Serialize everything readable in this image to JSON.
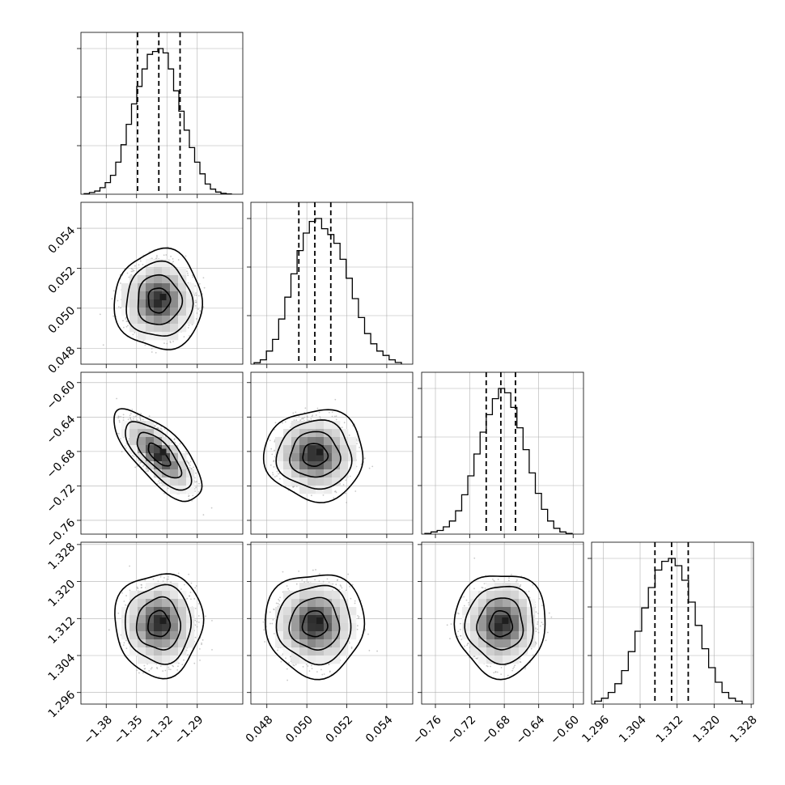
{
  "chart_data": {
    "type": "corner",
    "grid": true,
    "parameters": [
      {
        "index": 0,
        "range": [
          -1.405,
          -1.245
        ],
        "mean": -1.328,
        "sigma": 0.014,
        "quantiles": [
          -1.349,
          -1.328,
          -1.307
        ],
        "ticks": [
          -1.38,
          -1.35,
          -1.32,
          -1.29
        ],
        "tick_labels": [
          "−1.38",
          "−1.35",
          "−1.32",
          "−1.29"
        ],
        "hist": [
          0.004,
          0.012,
          0.022,
          0.045,
          0.08,
          0.13,
          0.22,
          0.34,
          0.48,
          0.62,
          0.74,
          0.86,
          0.96,
          0.98,
          1.0,
          0.97,
          0.86,
          0.71,
          0.57,
          0.44,
          0.32,
          0.22,
          0.14,
          0.07,
          0.035,
          0.015,
          0.006,
          0.002
        ]
      },
      {
        "index": 1,
        "range": [
          0.0472,
          0.0553
        ],
        "mean": 0.0504,
        "sigma": 0.0008,
        "quantiles": [
          0.0496,
          0.0504,
          0.0512
        ],
        "ticks": [
          0.048,
          0.05,
          0.052,
          0.054
        ],
        "tick_labels": [
          "0.048",
          "0.050",
          "0.052",
          "0.054"
        ],
        "hist": [
          0.01,
          0.03,
          0.09,
          0.17,
          0.31,
          0.46,
          0.62,
          0.78,
          0.9,
          0.98,
          1.0,
          0.93,
          0.89,
          0.83,
          0.72,
          0.59,
          0.45,
          0.32,
          0.21,
          0.14,
          0.09,
          0.06,
          0.03,
          0.012
        ]
      },
      {
        "index": 2,
        "range": [
          -0.776,
          -0.588
        ],
        "mean": -0.684,
        "sigma": 0.017,
        "quantiles": [
          -0.701,
          -0.684,
          -0.667
        ],
        "ticks": [
          -0.76,
          -0.72,
          -0.68,
          -0.64,
          -0.6
        ],
        "tick_labels": [
          "−0.76",
          "−0.72",
          "−0.68",
          "−0.64",
          "−0.60"
        ],
        "hist": [
          0.005,
          0.015,
          0.025,
          0.05,
          0.09,
          0.16,
          0.27,
          0.4,
          0.55,
          0.7,
          0.82,
          0.93,
          1.0,
          0.97,
          0.87,
          0.73,
          0.58,
          0.42,
          0.28,
          0.17,
          0.09,
          0.04,
          0.015,
          0.005
        ]
      },
      {
        "index": 3,
        "range": [
          1.2935,
          1.3285
        ],
        "mean": 1.3108,
        "sigma": 0.0036,
        "quantiles": [
          1.3072,
          1.3108,
          1.3144
        ],
        "ticks": [
          1.296,
          1.304,
          1.312,
          1.32,
          1.328
        ],
        "tick_labels": [
          "1.296",
          "1.304",
          "1.312",
          "1.320",
          "1.328"
        ],
        "hist": [
          0.02,
          0.04,
          0.08,
          0.14,
          0.23,
          0.36,
          0.5,
          0.66,
          0.8,
          0.92,
          0.98,
          1.0,
          0.95,
          0.85,
          0.7,
          0.54,
          0.38,
          0.25,
          0.15,
          0.08,
          0.04,
          0.02
        ]
      }
    ],
    "correlations": {
      "1_0": 0.0,
      "2_0": -0.72,
      "2_1": 0.0,
      "3_0": 0.0,
      "3_1": 0.0,
      "3_2": 0.0
    },
    "contour_levels_sigma": [
      0.5,
      1.0,
      1.5,
      2.0
    ],
    "colors": {
      "line": "#000000",
      "grid": "#b0b0b0",
      "points": "#9a9a9a",
      "density_dark": "#1e1e1e"
    }
  }
}
